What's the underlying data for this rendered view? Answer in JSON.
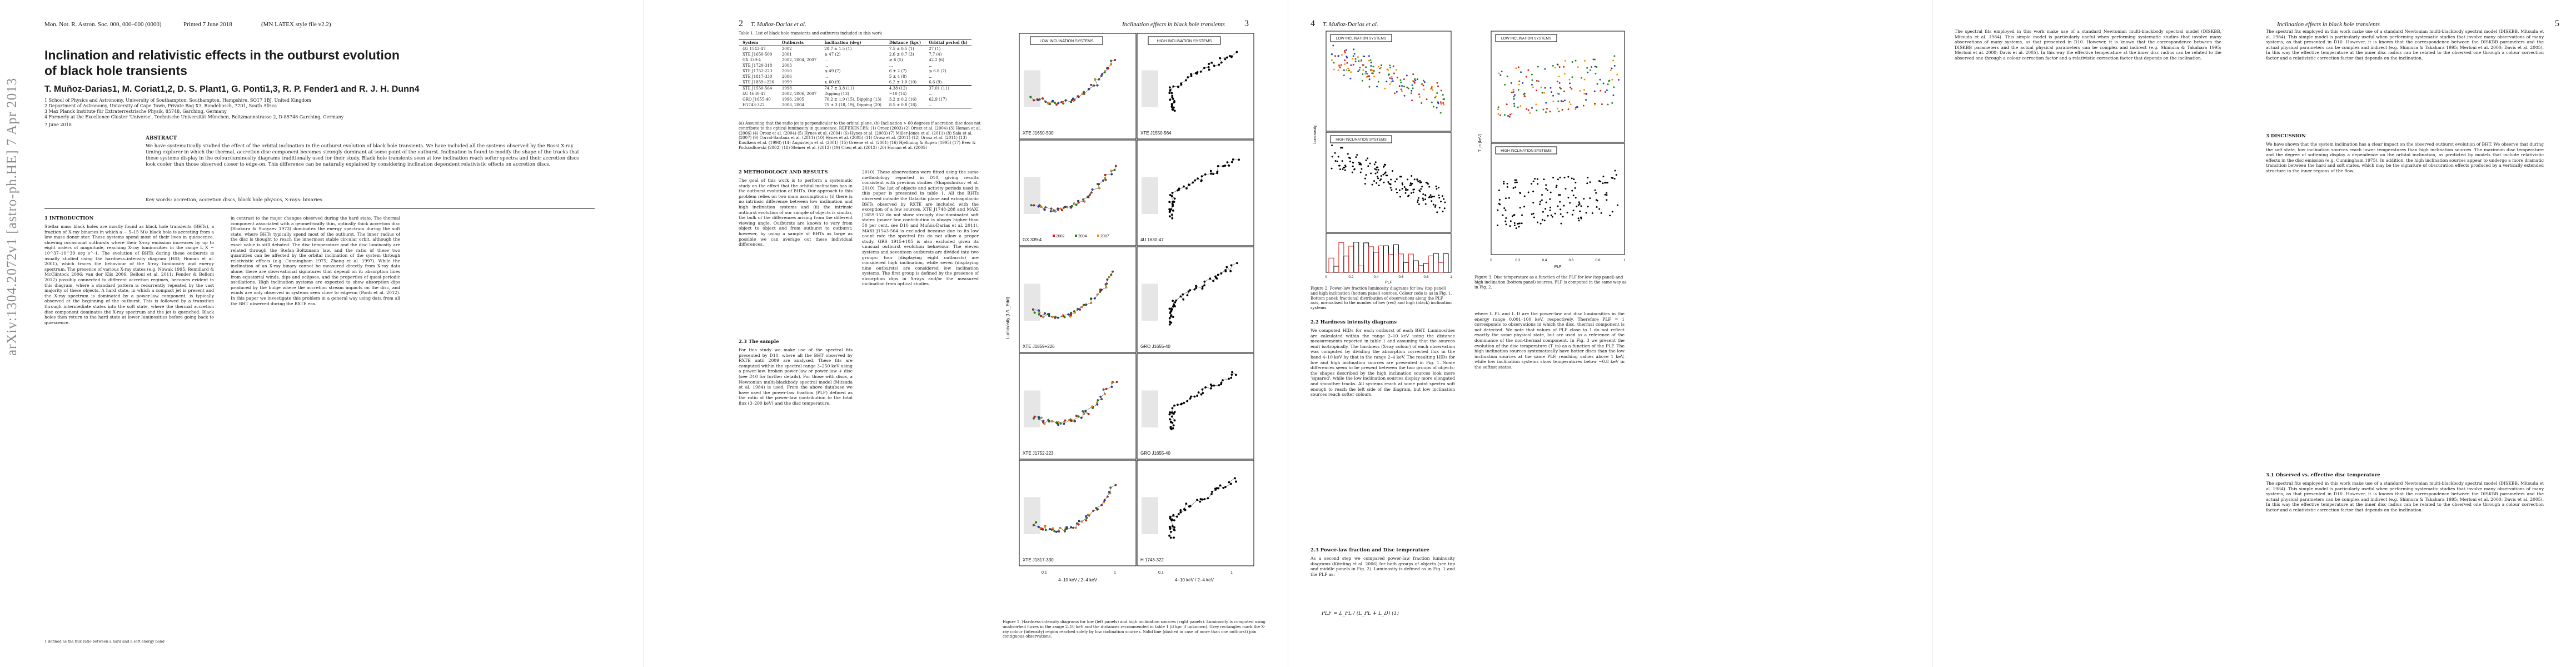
{
  "arxiv_stamp": "arXiv:1304.2072v1  [astro-ph.HE]  7 Apr 2013",
  "page1": {
    "header_left": "Mon. Not. R. Astron. Soc. 000, 000–000 (0000)",
    "header_printed": "Printed 7 June 2018",
    "header_right": "(MN LATEX style file v2.2)",
    "title": "Inclination and relativistic effects in the outburst evolution of black hole transients",
    "authors": "T. Muñoz-Darias1, M. Coriat1,2, D. S. Plant1, G. Ponti1,3, R. P. Fender1 and R. J. H. Dunn4",
    "affiliations": [
      "1 School of Physics and Astronomy, University of Southampton, Southampton, Hampshire, SO17 1BJ, United Kingdom",
      "2 Department of Astronomy, University of Cape Town, Private Bag X3, Rondebosch, 7701, South Africa",
      "3 Max Planck Institute für Extraterrestrische Physik, 85748, Garching, Germany",
      "4 Formerly at the Excellence Cluster 'Universe', Technische Universität München, Boltzmannstrasse 2, D-85748 Garching, Germany"
    ],
    "date": "7 June 2018",
    "abstract_heading": "ABSTRACT",
    "abstract": "We have systematically studied the effect of the orbital inclination in the outburst evolution of black hole transients. We have included all the systems observed by the Rossi X-ray timing explorer in which the thermal, accretion disc component becomes strongly dominant at some point of the outburst. Inclination is found to modify the shape of the tracks that these systems display in the colour/luminosity diagrams traditionally used for their study. Black hole transients seen at low inclination reach softer spectra and their accretion discs look cooler than those observed closer to edge-on. This difference can be naturally explained by considering inclination dependent relativistic effects on accretion discs.",
    "keywords": "Key words: accretion, accretion discs, black hole physics, X-rays: binaries",
    "intro_heading": "1 INTRODUCTION",
    "col1": "Stellar mass black holes are mostly found as black hole transients (BHTs), a fraction of X-ray binaries in which a ~ 5–15 M⊙ black hole is accreting from a low mass donor star. These systems spend most of their lives in quiescence, showing occasional outbursts where their X-ray emission increases by up to eight orders of magnitude, reaching X-ray luminosities in the range L_X ~ 10^37–10^39 erg s^-1. The evolution of BHTs during these outbursts is usually studied using the hardness–intensity diagram (HID; Homan et al. 2001), which traces the behaviour of the X-ray luminosity and energy spectrum. The presence of various X-ray states (e.g. Nowak 1995; Remillard & McClintock 2006; van der Klis 2006; Belloni et al. 2011; Fender & Belloni 2012) possibly connected to different accretion regimes, becomes evident in this diagram, where a standard pattern is recurrently repeated by the vast majority of these objects. A hard state, in which a compact jet is present and the X-ray spectrum is dominated by a power-law component, is typically observed at the beginning of the outburst. This is followed by a transition through intermediate states into the soft state, where the thermal accretion disc component dominates the X-ray spectrum and the jet is quenched. Black holes then return to the hard state at lower luminosities before going back to quiescence.",
    "col2": "in contrast to the major changes observed during the hard state. The thermal component associated with a geometrically thin, optically thick accretion disc (Shakura & Sunyaev 1973) dominates the energy spectrum during the soft state, where BHTs typically spend most of the outburst. The inner radius of the disc is thought to reach the innermost stable circular orbit, although the exact value is still debated. The disc temperature and the disc luminosity are related through the Stefan–Boltzmann law, and the ratio of these two quantities can be affected by the orbital inclination of the system through relativistic effects (e.g. Cunningham 1975; Zhang et al. 1997). While the inclination of an X-ray binary cannot be measured directly from X-ray data alone, there are observational signatures that depend on it: absorption lines from equatorial winds, dips and eclipses, and the properties of quasi-periodic oscillations. High inclination systems are expected to show absorption dips produced by the bulge where the accretion stream impacts on the disc, and winds are only observed in systems seen close to edge-on (Ponti et al. 2012). In this paper we investigate this problem in a general way using data from all the BHT observed during the RXTE era.",
    "footnote": "1 defined as the flux ratio between a hard and a soft energy band"
  },
  "page2": {
    "header_author": "T. Muñoz-Darias et al.",
    "header_title": "Inclination effects in black hole transients",
    "page_left": "2",
    "page_right": "3",
    "table_caption": "Table 1. List of black hole transients and outbursts included in this work",
    "table_headers": [
      "System",
      "Outbursts",
      "Inclination (deg)",
      "Distance (kpc)",
      "Orbital period (h)"
    ],
    "table_low": [
      [
        "4U 1543-47",
        "2002",
        "20.7 ± 1.5 (1)",
        "7.5 ± 0.5 (1)",
        "27 (1)"
      ],
      [
        "XTE J1650-500",
        "2001",
        "≳ 47 (2)",
        "2.6 ± 0.7 (3)",
        "7.7 (4)"
      ],
      [
        "GX 339-4",
        "2002, 2004, 2007",
        "...",
        "≳ 6 (5)",
        "42.2 (6)"
      ],
      [
        "XTE J1720-318",
        "2003",
        "...",
        "...",
        "..."
      ],
      [
        "XTE J1752-223",
        "2010",
        "≲ 49 (7)",
        "6 ± 2 (7)",
        "≲ 6.8 (7)"
      ],
      [
        "XTE J1817-330",
        "2006",
        "...",
        "5 ± 4 (8)",
        "..."
      ],
      [
        "XTE J1859+226",
        "1999",
        "≳ 60 (9)",
        "6.2 ± 1.0 (10)",
        "6.6 (9)"
      ]
    ],
    "table_high": [
      [
        "XTE J1550-564",
        "1998",
        "74.7 ± 3.8 (11)",
        "4.38 (12)",
        "37.01 (11)"
      ],
      [
        "4U 1630-47",
        "2002, 2006, 2007",
        "Dipping (13)",
        "~10 (14)",
        "..."
      ],
      [
        "GRO J1655-40",
        "1996, 2005",
        "70.2 ± 1.9 (15), Dipping (13)",
        "3.2 ± 0.2 (16)",
        "62.9 (17)"
      ],
      [
        "H1743-322",
        "2003, 2004",
        "75 ± 3 (18, 19), Dipping (20)",
        "8.5 ± 0.8 (18)",
        "..."
      ]
    ],
    "table_notes": "(a) Assuming that the radio jet is perpendicular to the orbital plane. (b) Inclination > 60 degrees if accretion disc does not contribute to the optical luminosity in quiescence. REFERENCES: (1) Orosz (2003) (2) Orosz et al. (2004) (3) Homan et al. (2006) (4) Orosz et al. (2004) (5) Hynes et al. (2004) (6) Hynes et al. (2003) (7) Miller-Jones et al. (2011) (8) Sala et al. (2007) (9) Corral-Santana et al. (2011) (10) Hynes et al. (2005) (11) Orosz et al. (2011) (12) Orosz et al. (2011) (13) Kuulkers et al. (1998) (14) Augusteijn et al. (2001) (15) Greene et al. (2001) (16) Hjellming & Rupen (1995) (17) Beer & Podsiadlowski (2002) (18) Steiner et al. (2012) (19) Chen et al. (2012) (20) Homan et al. (2005)",
    "sec2_heading": "2 METHODOLOGY AND RESULTS",
    "sec2_col1": "The goal of this work is to perform a systematic study on the effect that the orbital inclination has in the outburst evolution of BHTs. Our approach to this problem relies on two main assumptions: (i) there is no intrinsic difference between low inclination and high inclination systems and (ii) the intrinsic outburst evolution of our sample of objects is similar, the bulk of the differences arising from the different viewing angle. Outbursts are known to vary from object to object and from outburst to outburst; however, by using a sample of BHTs as large as possible we can average out these individual differences.",
    "sec23_heading": "2.3 The sample",
    "sec23_col1": "For this study we make use of the spectral fits presented by D10, where all the BHT observed by RXTE until 2009 are analysed. These fits are computed within the spectral range 3–250 keV using a power-law, broken power-law or power-law + disc (see D10 for further details). For those with discs, a Newtonian multi-blackbody spectral model (Mitsuda et al. 1984) is used. From the above database we have used the power-law fraction (PLF) defined as the ratio of the power-law contribution to the total flux (3–200 keV) and the disc temperature.",
    "sec2_col2": "2010). These observations were fitted using the same methodology reported in D10, giving results consistent with previous studies (Shaposhnikov et al. 2010). The list of objects and activity periods used in this paper is presented in table 1. All the BHTs observed outside the Galactic plane and extragalactic BHTs observed by RXTE are included with the exception of a few sources. XTE J1748-288 and MAXI J1659-152 do not show strongly disc-dominated soft states (power law contribution is always higher than 50 per cent, see D10 and Muñoz-Darias et al. 2011). MAXI J1543-564 is excluded because due to its low count rate the spectral fits do not allow a proper study. GRS 1915+105 is also excluded given its unusual outburst evolution behaviour. The eleven systems and seventeen outbursts are divided into two groups: four (displaying eight outbursts) are considered high inclination, while seven (displaying nine outbursts) are considered low inclination systems. The first group is defined by the presence of absorption dips in X-rays and/or the measured inclination from optical studies.",
    "fig1_caption": "Figure 1. Hardness-intensity diagrams for low (left panels) and high inclination sources (right panels). Luminosity is computed using unabsorbed fluxes in the range 2–10 keV and the distances recommended in table 1 (if kpc if unknown). Grey rectangles mark the X-ray colour (intensity) region reached solely by low inclination sources. Solid line (dashed in case of more than one outburst) join contiguous observations."
  },
  "figure1": {
    "low_label": "LOW INCLINATION SYSTEMS",
    "high_label": "HIGH INCLINATION SYSTEMS",
    "xlabel": "4–10 keV / 2–4 keV",
    "ylabel": "Luminosity (L/L_Edd)",
    "panels": [
      {
        "low": "XTE J1650-500",
        "high": "XTE J1550-564"
      },
      {
        "low": "GX 339-4",
        "high": "4U 1630-47"
      },
      {
        "low": "XTE J1859+226",
        "high": "GRO J1655-40"
      },
      {
        "low": "XTE J1752-223",
        "high": "GRO J1655-40"
      },
      {
        "low": "XTE J1817-330",
        "high": "H 1743-322"
      }
    ],
    "outburst_legend": [
      "2002",
      "2004",
      "2007"
    ],
    "xticks": [
      "0.1",
      "1",
      "0.1",
      "1"
    ]
  },
  "page3": {
    "header_author": "T. Muñoz-Darias et al.",
    "header_title": "Inclination effects in black hole transients",
    "page_left": "4",
    "page_right": "5",
    "fig2_low_label": "LOW INCLINATION SYSTEMS",
    "fig2_high_label": "HIGH INCLINATION SYSTEMS",
    "fig2_caption": "Figure 2. Power-law fraction luminosity diagrams for low (top panel) and high inclination (bottom panel) sources. Colour code is as in Fig. 1. Bottom panel: fractional distribution of observations along the PLF axis, normalised to the number of low (red) and high (black) inclination systems.",
    "fig3_caption": "Figure 3. Disc temperature as a function of the PLF for low (top panel) and high inclination (bottom panel) sources. PLF is computed in the same way as in Fig. 2.",
    "sec22_heading": "2.2 Hardness intensity diagrams",
    "sec22_col1": "We computed HIDs for each outburst of each BHT. Luminosities are calculated within the range 2–10 keV using the distance measurements reported in table 1 and assuming that the sources emit isotropically. The hardness (X-ray colour) of each observation was computed by dividing the absorption corrected flux in the band 4–10 keV by that in the range 2–4 keV. The resulting HIDs for low and high inclination sources are presented in Fig. 1. Some differences seem to be present between the two groups of objects: the shapes described by the high inclination sources look more 'squared', while the low inclination sources display more elongated and smoother tracks. All systems reach at some point spectra soft enough to reach the left side of the diagram, but low inclination sources reach softer colours.",
    "sec23b_heading": "2.3 Power-law fraction and Disc temperature",
    "sec23b_col1": "As a second step we compared power-law fraction luminosity diagrams (Körding et al. 2006) for both groups of objects (see top and middle panels in Fig. 2). Luminosity is defined as in Fig. 1 and the PLF as:",
    "equation": "PLF = L_PL / (L_PL + L_D)     (1)",
    "sec23b_col2": "where L_PL and L_D are the power-law and disc luminosities in the energy range 0.001–100 keV, respectively. Therefore PLF = 1 corresponds to observations in which the disc, thermal component is not detected. We note that values of PLF close to 1 do not reflect exactly the same physical state, but are used as a reference of the dominance of the non-thermal component. In Fig. 3 we present the evolution of the disc temperature (T_in) as a function of the PLF. The high inclination sources systematically have hotter discs than the low inclination sources at the same PLF, reaching values above 1 keV, while low inclination systems show temperatures below ~0.8 keV in the softest states.",
    "sec3_heading": "3 DISCUSSION",
    "sec3_col": "We have shown that the system inclination has a clear impact on the observed outburst evolution of BHT. We observe that during the soft state, low inclination sources reach lower temperatures than high inclination sources. The maximum disc temperature and the degree of softening display a dependence on the orbital inclination, as predicted by models that include relativistic effects in the disc emission (e.g. Cunningham 1975). In addition, the high inclination sources appear to undergo a more dramatic transition between the hard and soft states, which may be the signature of obscuration effects produced by a vertically extended structure in the inner regions of the flow.",
    "sec31_heading": "3.1 Observed vs. effective disc temperature",
    "sec31_col": "The spectral fits employed in this work make use of a standard Newtonian multi-blackbody spectral model (DISKBB, Mitsuda et al. 1984). This simple model is particularly useful when performing systematic studies that involve many observations of many systems, as that presented in D10. However, it is known that the correspondence between the DISKBB parameters and the actual physical parameters can be complex and indirect (e.g. Shimura & Takahara 1995; Merloni et al. 2000; Davis et al. 2005). In this way the effective temperature at the inner disc radius can be related to the observed one through a colour correction factor and a relativistic correction factor that depends on the inclination."
  },
  "figure2": {
    "ylabel": "Luminosity",
    "xlabel": "PLF",
    "xticks": [
      "0",
      "0.2",
      "0.4",
      "0.6",
      "0.8",
      "1"
    ]
  },
  "figure3": {
    "ylabel": "T_in (keV)",
    "xlabel": "PLF",
    "xticks": [
      "0",
      "0.2",
      "0.4",
      "0.6",
      "0.8",
      "1"
    ]
  },
  "colors": {
    "low_series": [
      "#d21f1f",
      "#1b8a1b",
      "#ff8c00",
      "#1f3fbf"
    ],
    "high_series": [
      "#000000"
    ],
    "grey_region": "#e6e6e6"
  }
}
